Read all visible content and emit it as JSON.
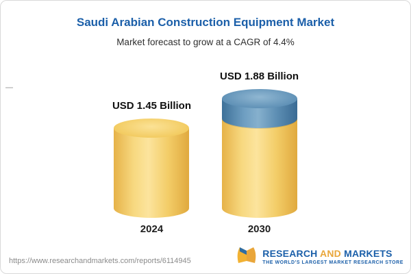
{
  "header": {
    "title": "Saudi Arabian Construction Equipment Market",
    "subtitle": "Market forecast to grow at a CAGR of 4.4%"
  },
  "chart_data": {
    "type": "bar",
    "bar_style": "3d-cylinder",
    "title": "Saudi Arabian Construction Equipment Market",
    "subtitle": "Market forecast to grow at a CAGR of 4.4%",
    "cagr_percent": 4.4,
    "unit": "USD Billion",
    "categories": [
      "2024",
      "2030"
    ],
    "values": [
      1.45,
      1.88
    ],
    "value_labels": [
      "USD 1.45 Billion",
      "USD 1.88 Billion"
    ],
    "colors": {
      "bar_base": "#F3CD68",
      "bar_growth_top": "#5E8FB4"
    },
    "legend": "none",
    "grid": "off",
    "xlabel": "",
    "ylabel": ""
  },
  "footer": {
    "url": "https://www.researchandmarkets.com/reports/6114945",
    "brand": {
      "part1": "RESEARCH",
      "part2": "AND",
      "part3": "MARKETS",
      "tagline": "THE WORLD'S LARGEST MARKET RESEARCH STORE"
    },
    "brand_colors": {
      "blue": "#1B5FA9",
      "gold": "#E9A63A"
    }
  }
}
